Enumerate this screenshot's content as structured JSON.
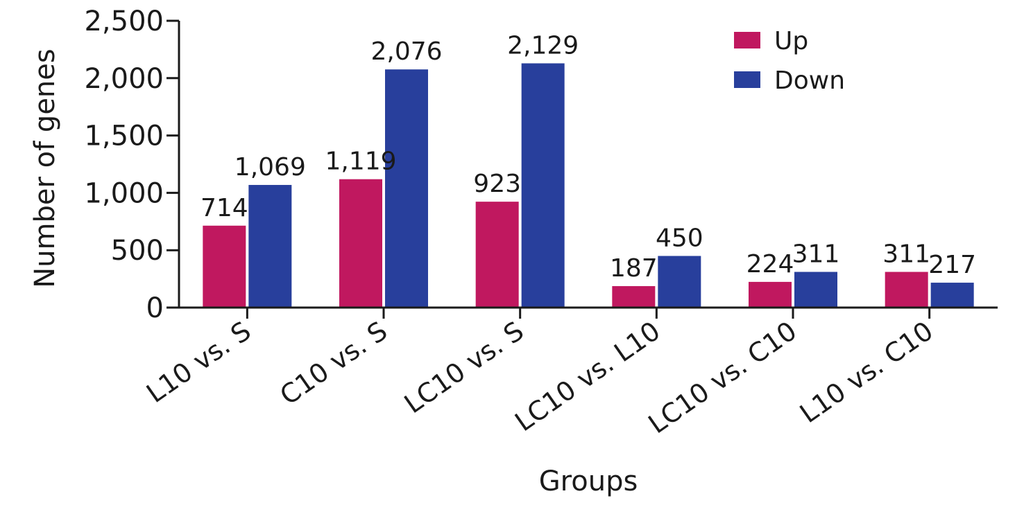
{
  "chart_data": {
    "type": "bar",
    "xlabel": "Groups",
    "ylabel": "Number of genes",
    "ylim": [
      0,
      2500
    ],
    "yticks": [
      "0",
      "500",
      "1,000",
      "1,500",
      "2,000",
      "2,500"
    ],
    "ytick_values": [
      0,
      500,
      1000,
      1500,
      2000,
      2500
    ],
    "grid": false,
    "legend_position": "top-right",
    "categories": [
      "L10 vs. S",
      "C10 vs. S",
      "LC10 vs. S",
      "LC10 vs. L10",
      "LC10 vs. C10",
      "L10 vs. C10"
    ],
    "series": [
      {
        "name": "Up",
        "color": "#c0185f",
        "values": [
          714,
          1119,
          923,
          187,
          224,
          311
        ],
        "labels": [
          "714",
          "1,119",
          "923",
          "187",
          "224",
          "311"
        ]
      },
      {
        "name": "Down",
        "color": "#283f9c",
        "values": [
          1069,
          2076,
          2129,
          450,
          311,
          217
        ],
        "labels": [
          "1,069",
          "2,076",
          "2,129",
          "450",
          "311",
          "217"
        ]
      }
    ]
  }
}
